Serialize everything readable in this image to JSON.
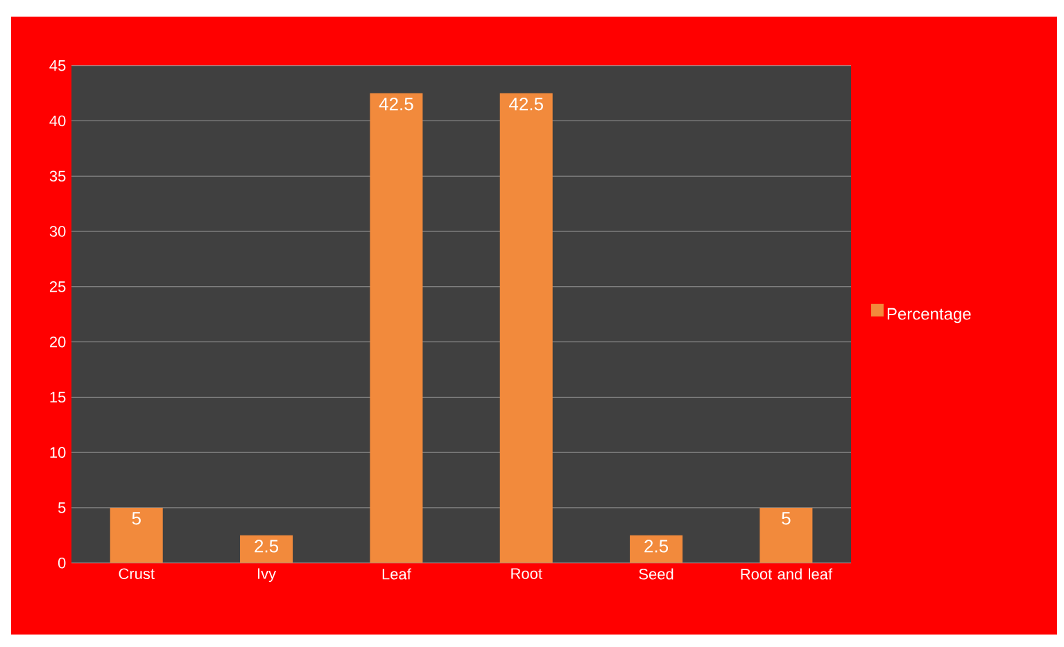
{
  "chart_data": {
    "type": "bar",
    "categories": [
      "Crust",
      "Ivy",
      "Leaf",
      "Root",
      "Seed",
      "Root and leaf"
    ],
    "series": [
      {
        "name": "Percentage",
        "color": "#f28a3c",
        "values": [
          5,
          2.5,
          42.5,
          42.5,
          2.5,
          5
        ],
        "value_labels": [
          "5",
          "2.5",
          "42.5",
          "42.5",
          "2.5",
          "5"
        ]
      }
    ],
    "ylim": [
      0,
      45
    ],
    "yticks": [
      0,
      5,
      10,
      15,
      20,
      25,
      30,
      35,
      40,
      45
    ],
    "grid": "y",
    "legend": "right"
  }
}
